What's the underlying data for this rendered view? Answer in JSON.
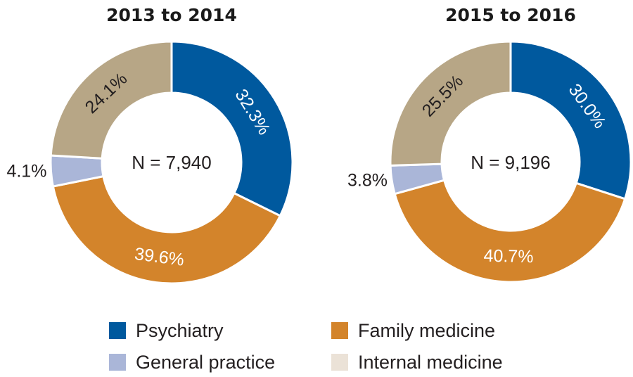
{
  "colors": {
    "psychiatry": "#00599e",
    "family_medicine": "#d3842b",
    "general_practice": "#aab6d8",
    "internal_medicine": "#b7a686"
  },
  "legend": {
    "psychiatry": "Psychiatry",
    "family_medicine": "Family medicine",
    "general_practice": "General practice",
    "internal_medicine": "Internal medicine"
  },
  "legend_swatches": {
    "internal_medicine": "#ebe2d7"
  },
  "chart_data": [
    {
      "type": "pie",
      "title": "2013 to 2014",
      "center_label": "N = 7,940",
      "slices": [
        {
          "key": "psychiatry",
          "value": 32.3,
          "label": "32.3%"
        },
        {
          "key": "family_medicine",
          "value": 39.6,
          "label": "39.6%"
        },
        {
          "key": "general_practice",
          "value": 4.1,
          "label": "4.1%"
        },
        {
          "key": "internal_medicine",
          "value": 24.1,
          "label": "24.1%"
        }
      ]
    },
    {
      "type": "pie",
      "title": "2015 to 2016",
      "center_label": "N = 9,196",
      "slices": [
        {
          "key": "psychiatry",
          "value": 30.0,
          "label": "30.0%"
        },
        {
          "key": "family_medicine",
          "value": 40.7,
          "label": "40.7%"
        },
        {
          "key": "general_practice",
          "value": 3.8,
          "label": "3.8%"
        },
        {
          "key": "internal_medicine",
          "value": 25.5,
          "label": "25.5%"
        }
      ]
    }
  ]
}
